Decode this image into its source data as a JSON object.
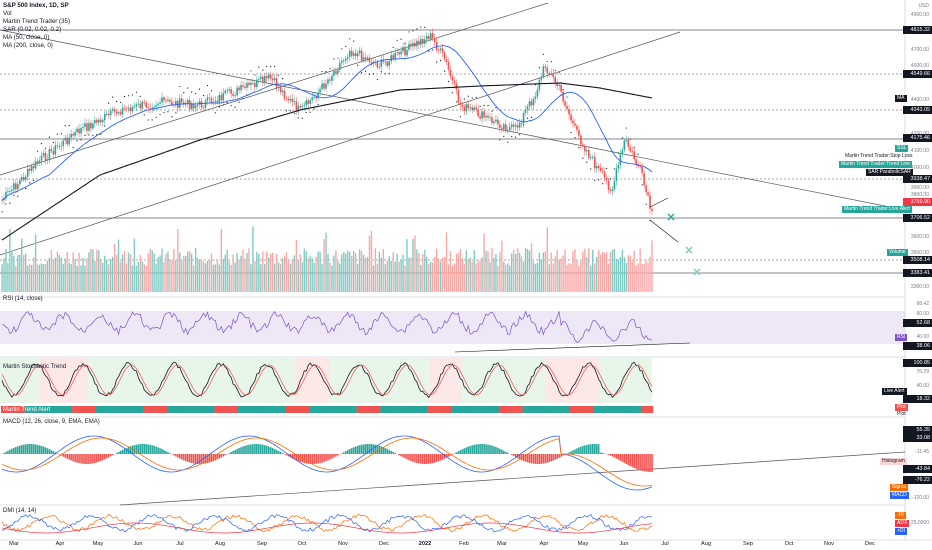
{
  "header": {
    "title": "S&P 500 Index, 1D, SP",
    "indicators": [
      "Vol",
      "Martin Trend Trader (35)",
      "SAR (0.02, 0.02, 0.2)",
      "MA (50, close, 0)",
      "MA (200, close, 0)"
    ]
  },
  "panes": {
    "rsi": "RSI (14, close)",
    "stoch": "Martin Stochastic Trend",
    "trend_label": "Martin Trend Alert",
    "macd": "MACD (12, 26, close, 9, EMA, EMA)",
    "dmi": "DMI (14, 14)"
  },
  "price_axis": {
    "currency": "USD",
    "ticks": [
      "4900.00",
      "4700.00",
      "4600.00",
      "4400.00",
      "4200.00",
      "4100.00",
      "4000.00",
      "3900.00",
      "3800.00",
      "3600.00",
      "3500.00",
      "3300.00"
    ],
    "labels": [
      {
        "text": "4815.32",
        "color": "#131722"
      },
      {
        "text": "4549.66",
        "color": "#131722"
      },
      {
        "text": "4343.05",
        "color": "#131722"
      },
      {
        "text": "4175.46",
        "color": "#131722"
      },
      {
        "text": "3938.47",
        "color": "#131722"
      },
      {
        "text": "3759.90",
        "color": "#f23645"
      },
      {
        "text": "3706.52",
        "color": "#131722"
      },
      {
        "text": "3508.14",
        "color": "#131722"
      },
      {
        "text": "3383.41",
        "color": "#131722"
      }
    ]
  },
  "tags": {
    "ma": "MA",
    "ssl": "SSL",
    "stop_loss": "Martin Trend Trader:Stop Loss",
    "trend_line": "Martin Trend Trader:Trend Line",
    "sar": "SAR:ParabolicSAR",
    "live_alert_price": "Martin Trend Trader:Live Alert",
    "volume": "Volume",
    "rsi": "RSI",
    "live_alert": "Live Alert",
    "plot": "Plot",
    "histogram": "Histogram",
    "signal": "Signal",
    "macd": "MACD",
    "di_minus": "-DI",
    "adx": "ADX",
    "di_plus": "+DI"
  },
  "rsi_axis": [
    "68.42",
    "60.00",
    "52.68",
    "40.00",
    "38.06"
  ],
  "stoch_axis": [
    "100.85",
    "76.29",
    "40.00",
    "18.32"
  ],
  "macd_axis": [
    "55.35",
    "33.08",
    "-11.45",
    "-43.84",
    "-76.22",
    "-120.00"
  ],
  "dmi_axis": [
    "25.0000"
  ],
  "time_axis": [
    "Mar",
    "Apr",
    "May",
    "Jun",
    "Jul",
    "Aug",
    "Sep",
    "Oct",
    "Nov",
    "Dec",
    "2022",
    "Feb",
    "Mar",
    "Apr",
    "May",
    "Jun",
    "Jul",
    "Aug",
    "Sep",
    "Oct",
    "Nov",
    "Dec"
  ],
  "colors": {
    "up": "#26a69a",
    "down": "#ef5350",
    "ma50": "#2962ff",
    "ma200": "#131722",
    "rsi": "#7e57c2",
    "macd": "#2962ff",
    "signal": "#ff6d00"
  }
}
